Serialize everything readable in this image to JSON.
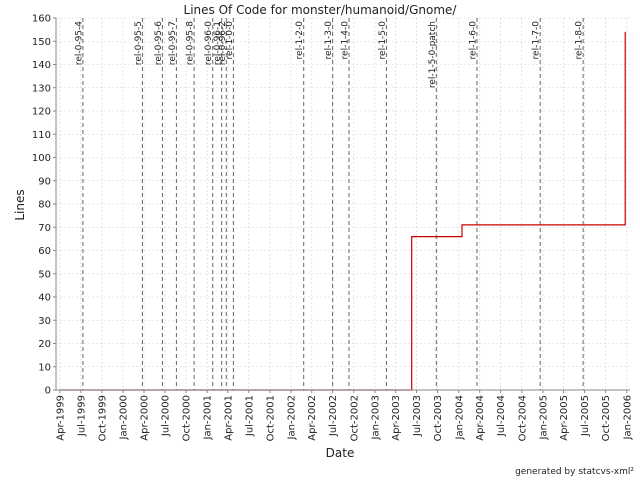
{
  "chart_data": {
    "type": "line",
    "title": "Lines Of Code for monster/humanoid/Gnome/",
    "xlabel": "Date",
    "ylabel": "Lines",
    "ylim": [
      0,
      160
    ],
    "xlim": [
      "1999-03-15",
      "2006-01-15"
    ],
    "y_ticks": [
      0,
      10,
      20,
      30,
      40,
      50,
      60,
      70,
      80,
      90,
      100,
      110,
      120,
      130,
      140,
      150,
      160
    ],
    "x_ticks": [
      {
        "date": "1999-04-01",
        "label": "Apr-1999"
      },
      {
        "date": "1999-07-01",
        "label": "Jul-1999"
      },
      {
        "date": "1999-10-01",
        "label": "Oct-1999"
      },
      {
        "date": "2000-01-01",
        "label": "Jan-2000"
      },
      {
        "date": "2000-04-01",
        "label": "Apr-2000"
      },
      {
        "date": "2000-07-01",
        "label": "Jul-2000"
      },
      {
        "date": "2000-10-01",
        "label": "Oct-2000"
      },
      {
        "date": "2001-01-01",
        "label": "Jan-2001"
      },
      {
        "date": "2001-04-01",
        "label": "Apr-2001"
      },
      {
        "date": "2001-07-01",
        "label": "Jul-2001"
      },
      {
        "date": "2001-10-01",
        "label": "Oct-2001"
      },
      {
        "date": "2002-01-01",
        "label": "Jan-2002"
      },
      {
        "date": "2002-04-01",
        "label": "Apr-2002"
      },
      {
        "date": "2002-07-01",
        "label": "Jul-2002"
      },
      {
        "date": "2002-10-01",
        "label": "Oct-2002"
      },
      {
        "date": "2003-01-01",
        "label": "Jan-2003"
      },
      {
        "date": "2003-04-01",
        "label": "Apr-2003"
      },
      {
        "date": "2003-07-01",
        "label": "Jul-2003"
      },
      {
        "date": "2003-10-01",
        "label": "Oct-2003"
      },
      {
        "date": "2004-01-01",
        "label": "Jan-2004"
      },
      {
        "date": "2004-04-01",
        "label": "Apr-2004"
      },
      {
        "date": "2004-07-01",
        "label": "Jul-2004"
      },
      {
        "date": "2004-10-01",
        "label": "Oct-2004"
      },
      {
        "date": "2005-01-01",
        "label": "Jan-2005"
      },
      {
        "date": "2005-04-01",
        "label": "Apr-2005"
      },
      {
        "date": "2005-07-01",
        "label": "Jul-2005"
      },
      {
        "date": "2005-10-01",
        "label": "Oct-2005"
      },
      {
        "date": "2006-01-01",
        "label": "Jan-2006"
      }
    ],
    "grid": true,
    "series": [
      {
        "color": "#cc0000",
        "step": true,
        "points": [
          {
            "x": "1999-04-01",
            "y": 0
          },
          {
            "x": "2003-06-10",
            "y": 0
          },
          {
            "x": "2003-06-10",
            "y": 66
          },
          {
            "x": "2004-01-15",
            "y": 66
          },
          {
            "x": "2004-01-15",
            "y": 71
          },
          {
            "x": "2005-12-25",
            "y": 71
          },
          {
            "x": "2005-12-25",
            "y": 154
          }
        ]
      }
    ],
    "tags": [
      {
        "date": "1999-07-10",
        "label": "rel-0-95-4"
      },
      {
        "date": "2000-03-25",
        "label": "rel-0-95-5"
      },
      {
        "date": "2000-06-20",
        "label": "rel-0-95-6"
      },
      {
        "date": "2000-08-20",
        "label": "rel-0-95-7"
      },
      {
        "date": "2000-11-05",
        "label": "rel-0-95-8"
      },
      {
        "date": "2001-01-25",
        "label": "rel-0-96-0"
      },
      {
        "date": "2001-03-05",
        "label": "rel-0-96-1"
      },
      {
        "date": "2001-03-25",
        "label": "rel-0-96-2"
      },
      {
        "date": "2001-04-25",
        "label": "rel-1-0-0"
      },
      {
        "date": "2002-02-25",
        "label": "rel-1-2-0"
      },
      {
        "date": "2002-07-01",
        "label": "rel-1-3-0"
      },
      {
        "date": "2002-09-10",
        "label": "rel-1-4-0"
      },
      {
        "date": "2003-02-20",
        "label": "rel-1-5-0"
      },
      {
        "date": "2003-09-25",
        "label": "rel-1-5-0-patch"
      },
      {
        "date": "2004-03-20",
        "label": "rel-1-6-0"
      },
      {
        "date": "2004-12-20",
        "label": "rel-1-7-0"
      },
      {
        "date": "2005-06-25",
        "label": "rel-1-8-0"
      }
    ]
  },
  "footer": "generated by statcvs-xml²"
}
